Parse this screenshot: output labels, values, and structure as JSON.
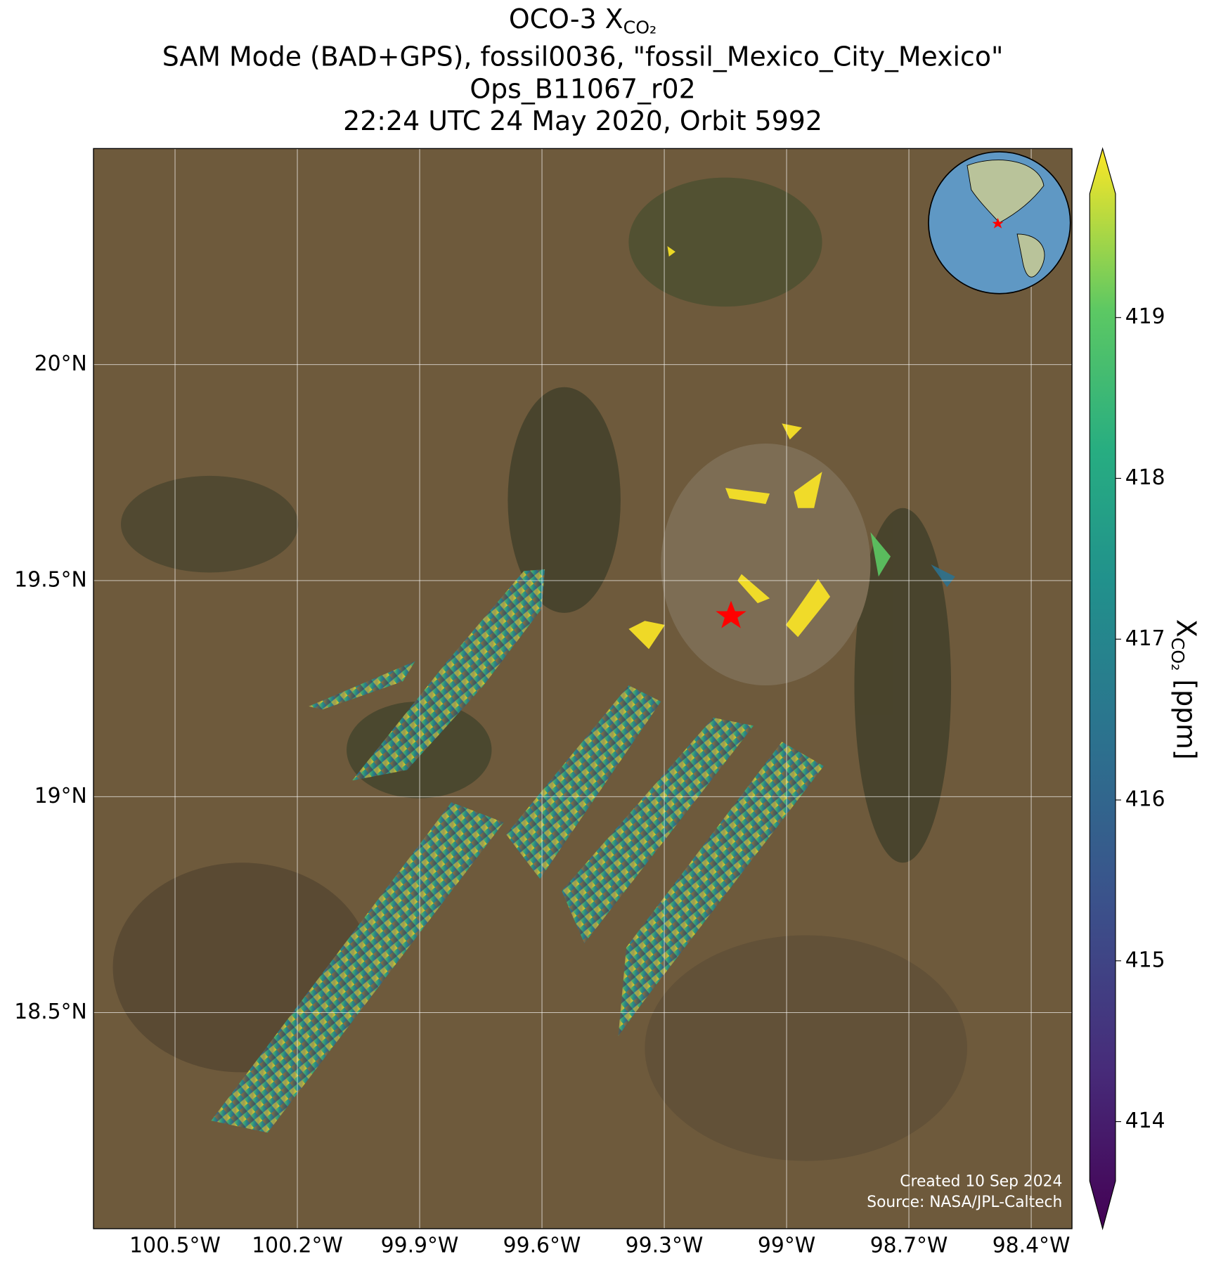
{
  "chart_data": {
    "type": "map",
    "title": {
      "text": "OCO-3 X",
      "subscript": "CO₂"
    },
    "subtitle_lines": [
      "SAM Mode (BAD+GPS), fossil0036, \"fossil_Mexico_City_Mexico\"",
      "Ops_B11067_r02",
      "22:24 UTC 24 May 2020, Orbit 5992"
    ],
    "xlim": [
      -100.7,
      -98.3
    ],
    "ylim": [
      18.0,
      20.5
    ],
    "xticks": [
      {
        "value": -100.5,
        "label": "100.5°W"
      },
      {
        "value": -100.2,
        "label": "100.2°W"
      },
      {
        "value": -99.9,
        "label": "99.9°W"
      },
      {
        "value": -99.6,
        "label": "99.6°W"
      },
      {
        "value": -99.3,
        "label": "99.3°W"
      },
      {
        "value": -99.0,
        "label": "99°W"
      },
      {
        "value": -98.7,
        "label": "98.7°W"
      },
      {
        "value": -98.4,
        "label": "98.4°W"
      }
    ],
    "yticks": [
      {
        "value": 18.5,
        "label": "18.5°N"
      },
      {
        "value": 19.0,
        "label": "19°N"
      },
      {
        "value": 19.5,
        "label": "19.5°N"
      },
      {
        "value": 20.0,
        "label": "20°N"
      }
    ],
    "grid": true,
    "colorbar": {
      "label": {
        "text": "X",
        "subscript": "CO₂",
        "suffix": " [ppm]"
      },
      "colormap": "viridis",
      "clim": [
        413.63,
        419.77
      ],
      "ticks": [
        414,
        415,
        416,
        417,
        418,
        419
      ]
    },
    "credits": [
      "Created 10 Sep 2024",
      "Source: NASA/JPL-Caltech"
    ]
  }
}
